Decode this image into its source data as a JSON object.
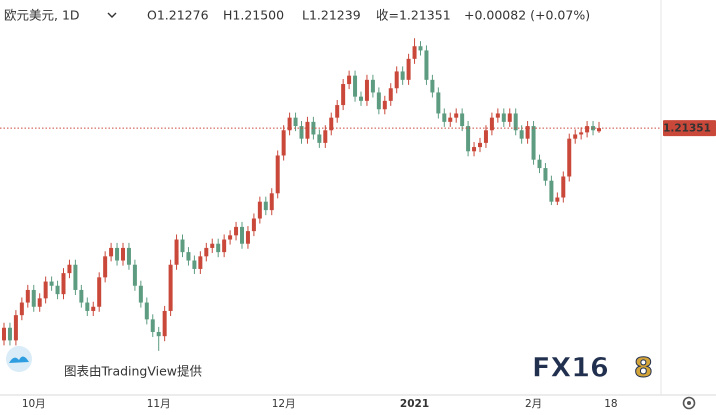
{
  "header": {
    "symbol": "欧元美元, 1D",
    "ohlc": [
      "O1.21276",
      "H1.21500",
      "L1.21239",
      "收=1.21351",
      "+0.00082 (+0.07%)"
    ]
  },
  "watermark": {
    "text": "图表由TradingView提供",
    "brand_main": "FX16",
    "brand_accent": "8"
  },
  "chart_data": {
    "type": "candlestick",
    "categories": [
      null,
      null,
      null,
      null,
      null,
      "10月",
      null,
      null,
      null,
      null,
      null,
      null,
      null,
      null,
      null,
      null,
      null,
      null,
      null,
      null,
      null,
      null,
      null,
      null,
      null,
      null,
      "11月",
      null,
      null,
      null,
      null,
      null,
      null,
      null,
      null,
      null,
      null,
      null,
      null,
      null,
      null,
      null,
      null,
      null,
      null,
      null,
      null,
      "12月",
      null,
      null,
      null,
      null,
      null,
      null,
      null,
      null,
      null,
      null,
      null,
      null,
      null,
      null,
      null,
      null,
      null,
      null,
      null,
      null,
      null,
      "2021",
      null,
      null,
      null,
      null,
      null,
      null,
      null,
      null,
      null,
      null,
      null,
      null,
      null,
      null,
      null,
      null,
      null,
      null,
      null,
      "2月",
      null,
      null,
      null,
      null,
      null,
      null,
      null,
      null,
      null,
      null,
      null,
      null,
      "18"
    ],
    "open": [
      1.163,
      1.166,
      1.163,
      1.169,
      1.172,
      1.175,
      1.171,
      1.173,
      1.177,
      1.176,
      1.174,
      1.179,
      1.181,
      1.175,
      1.172,
      1.17,
      1.171,
      1.178,
      1.183,
      1.185,
      1.182,
      1.185,
      1.181,
      1.176,
      1.172,
      1.168,
      1.165,
      1.164,
      1.17,
      1.181,
      1.187,
      1.184,
      1.182,
      1.18,
      1.183,
      1.185,
      1.186,
      1.184,
      1.187,
      1.188,
      1.19,
      1.186,
      1.189,
      1.192,
      1.196,
      1.194,
      1.198,
      1.207,
      1.213,
      1.216,
      1.214,
      1.211,
      1.215,
      1.212,
      1.21,
      1.213,
      1.216,
      1.219,
      1.224,
      1.226,
      1.221,
      1.22,
      1.225,
      1.222,
      1.218,
      1.22,
      1.223,
      1.227,
      1.225,
      1.23,
      1.233,
      1.232,
      1.225,
      1.222,
      1.217,
      1.215,
      1.216,
      1.217,
      1.214,
      1.208,
      1.209,
      1.21,
      1.213,
      1.216,
      1.217,
      1.215,
      1.217,
      1.213,
      1.211,
      1.214,
      1.206,
      1.204,
      1.201,
      1.196,
      1.197,
      1.202,
      1.211,
      1.212,
      1.2125,
      1.214,
      1.21276,
      null,
      null
    ],
    "high": [
      1.1672,
      1.1672,
      1.1702,
      1.1732,
      1.1762,
      1.1762,
      1.1742,
      1.1782,
      1.1782,
      1.1772,
      1.1802,
      1.1822,
      1.1822,
      1.1762,
      1.1732,
      1.1722,
      1.1792,
      1.1842,
      1.1862,
      1.1862,
      1.1862,
      1.1862,
      1.1822,
      1.1772,
      1.1732,
      1.1692,
      1.1662,
      1.1712,
      1.1822,
      1.1882,
      1.1882,
      1.1852,
      1.1832,
      1.1842,
      1.1862,
      1.1872,
      1.1872,
      1.1882,
      1.1892,
      1.1912,
      1.1912,
      1.1902,
      1.1932,
      1.1972,
      1.1972,
      1.1992,
      1.2082,
      1.2142,
      1.2172,
      1.2172,
      1.2152,
      1.2162,
      1.2162,
      1.2132,
      1.2142,
      1.2172,
      1.2202,
      1.2252,
      1.2272,
      1.2272,
      1.2222,
      1.2262,
      1.2262,
      1.2232,
      1.2212,
      1.2242,
      1.2282,
      1.2282,
      1.2312,
      1.2349,
      1.2342,
      1.2332,
      1.2262,
      1.2232,
      1.2182,
      1.2172,
      1.2182,
      1.2182,
      1.2152,
      1.2102,
      1.2112,
      1.2142,
      1.2172,
      1.2182,
      1.2182,
      1.2182,
      1.2182,
      1.2142,
      1.2152,
      1.2152,
      1.2072,
      1.2052,
      1.2022,
      1.1982,
      1.2032,
      1.2122,
      1.2132,
      1.2137,
      1.2152,
      1.2152,
      1.215,
      null,
      null
    ],
    "low": [
      1.1618,
      1.1618,
      1.1618,
      1.1678,
      1.1708,
      1.1698,
      1.1698,
      1.1718,
      1.1748,
      1.1728,
      1.1728,
      1.1778,
      1.1738,
      1.1708,
      1.1688,
      1.1688,
      1.1698,
      1.1768,
      1.1818,
      1.1808,
      1.1808,
      1.1798,
      1.1748,
      1.1708,
      1.1668,
      1.1638,
      1.1605,
      1.1628,
      1.1688,
      1.1798,
      1.1828,
      1.1808,
      1.1788,
      1.1788,
      1.1818,
      1.1838,
      1.1828,
      1.1828,
      1.1858,
      1.1868,
      1.1848,
      1.1848,
      1.1878,
      1.1908,
      1.1928,
      1.1928,
      1.1968,
      1.2058,
      1.2118,
      1.2128,
      1.2098,
      1.2098,
      1.2108,
      1.2088,
      1.2088,
      1.2118,
      1.2148,
      1.2178,
      1.2228,
      1.2198,
      1.2188,
      1.2188,
      1.2208,
      1.2168,
      1.2168,
      1.2188,
      1.2218,
      1.2238,
      1.2238,
      1.2288,
      1.2308,
      1.2238,
      1.2208,
      1.2158,
      1.2138,
      1.2138,
      1.2148,
      1.2128,
      1.2068,
      1.2068,
      1.2078,
      1.2088,
      1.2118,
      1.2148,
      1.2138,
      1.2138,
      1.2118,
      1.2098,
      1.2098,
      1.2048,
      1.2028,
      1.1998,
      1.1952,
      1.1952,
      1.1958,
      1.2008,
      1.2098,
      1.2108,
      1.2113,
      1.2118,
      1.21239,
      null,
      null
    ],
    "close": [
      1.166,
      1.163,
      1.169,
      1.172,
      1.175,
      1.171,
      1.173,
      1.177,
      1.176,
      1.174,
      1.179,
      1.181,
      1.175,
      1.172,
      1.17,
      1.171,
      1.178,
      1.183,
      1.185,
      1.182,
      1.185,
      1.181,
      1.176,
      1.172,
      1.168,
      1.165,
      1.164,
      1.17,
      1.181,
      1.187,
      1.184,
      1.182,
      1.18,
      1.183,
      1.185,
      1.186,
      1.184,
      1.187,
      1.188,
      1.19,
      1.186,
      1.189,
      1.192,
      1.196,
      1.194,
      1.198,
      1.207,
      1.213,
      1.216,
      1.214,
      1.211,
      1.215,
      1.212,
      1.21,
      1.213,
      1.216,
      1.219,
      1.224,
      1.226,
      1.221,
      1.22,
      1.225,
      1.222,
      1.218,
      1.22,
      1.223,
      1.227,
      1.225,
      1.23,
      1.233,
      1.232,
      1.225,
      1.222,
      1.217,
      1.215,
      1.216,
      1.217,
      1.214,
      1.208,
      1.209,
      1.21,
      1.213,
      1.216,
      1.217,
      1.215,
      1.217,
      1.213,
      1.211,
      1.214,
      1.206,
      1.204,
      1.201,
      1.196,
      1.197,
      1.202,
      1.211,
      1.212,
      1.2125,
      1.214,
      1.213,
      1.21351,
      null,
      null
    ],
    "up_color": "#c9483a",
    "down_color": "#5d9c80",
    "ylim": [
      1.15,
      1.244
    ],
    "grid": false,
    "price_line": true
  }
}
